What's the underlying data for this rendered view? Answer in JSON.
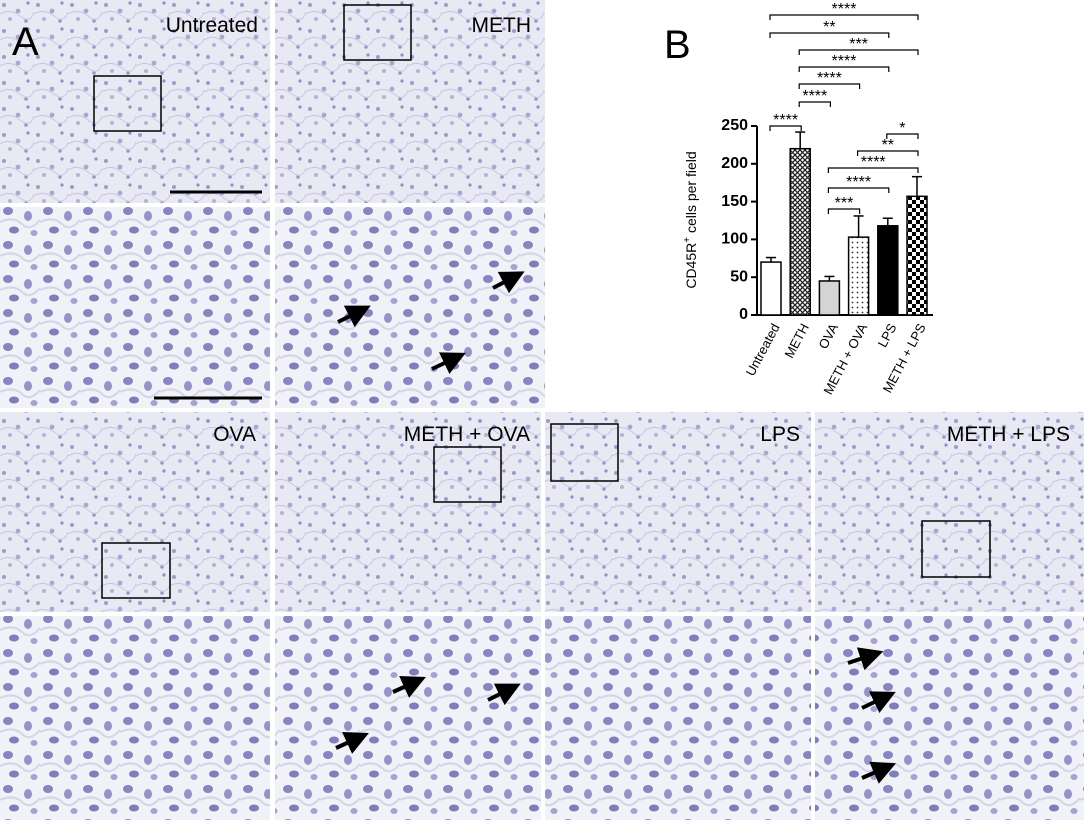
{
  "panel_labels": [
    "A",
    "B"
  ],
  "images": [
    {
      "label": "Untreated"
    },
    {
      "label": "METH"
    },
    {
      "label": "OVA"
    },
    {
      "label": "METH + OVA"
    },
    {
      "label": "LPS"
    },
    {
      "label": "METH + LPS"
    }
  ],
  "chart_data": {
    "type": "bar",
    "y_label": {
      "text": "CD45R",
      "superscript": "+",
      "suffix": " cells per field"
    },
    "categories": [
      "Untreated",
      "METH",
      "OVA",
      "METH + OVA",
      "LPS",
      "METH + LPS"
    ],
    "values": [
      70,
      220,
      45,
      103,
      118,
      157
    ],
    "errors": [
      6,
      22,
      6,
      28,
      10,
      26
    ],
    "patterns": [
      "white",
      "crosshatch",
      "gray",
      "dots",
      "black",
      "checker"
    ],
    "ylim": [
      0,
      250
    ],
    "yticks": [
      0,
      50,
      100,
      150,
      200,
      250
    ],
    "comparisons": [
      {
        "from": 0,
        "to": 5,
        "label": "****"
      },
      {
        "from": 0,
        "to": 4,
        "label": "**"
      },
      {
        "from": 1,
        "to": 5,
        "label": "***"
      },
      {
        "from": 1,
        "to": 4,
        "label": "****"
      },
      {
        "from": 1,
        "to": 3,
        "label": "****"
      },
      {
        "from": 1,
        "to": 2,
        "label": "****"
      },
      {
        "from": 0,
        "to": 1,
        "label": "****"
      },
      {
        "from": 4,
        "to": 5,
        "label": "*"
      },
      {
        "from": 3,
        "to": 5,
        "label": "**"
      },
      {
        "from": 2,
        "to": 5,
        "label": "****"
      },
      {
        "from": 2,
        "to": 4,
        "label": "****"
      },
      {
        "from": 2,
        "to": 3,
        "label": "***"
      }
    ]
  }
}
